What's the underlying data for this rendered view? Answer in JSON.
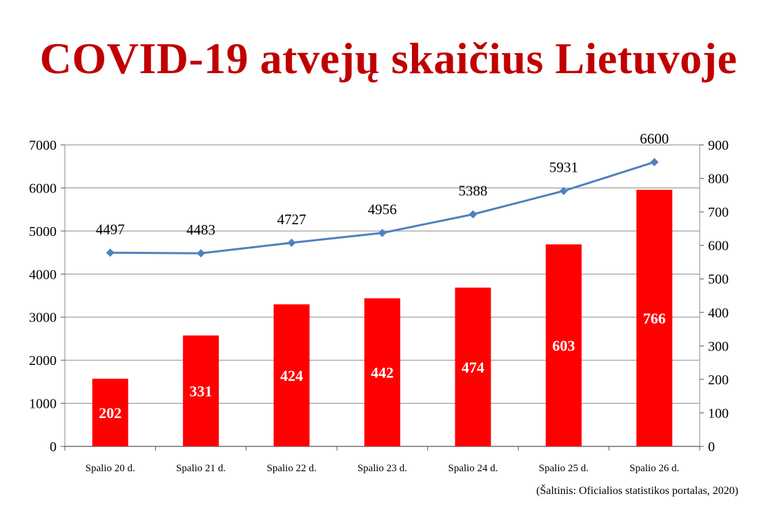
{
  "title": "COVID-19 atvejų skaičius Lietuvoje",
  "source": "(Šaltinis: Oficialios statistikos portalas, 2020)",
  "colors": {
    "title": "#c00000",
    "bars": "#ff0000",
    "line": "#4f81bd",
    "grid": "#888888"
  },
  "chart_data": {
    "type": "bar+line",
    "categories": [
      "Spalio 20 d.",
      "Spalio 21 d.",
      "Spalio 22 d.",
      "Spalio 23 d.",
      "Spalio 24 d.",
      "Spalio 25 d.",
      "Spalio 26 d."
    ],
    "bars": {
      "axis": "right",
      "values": [
        202,
        331,
        424,
        442,
        474,
        603,
        766
      ]
    },
    "line": {
      "axis": "left",
      "values": [
        4497,
        4483,
        4727,
        4956,
        5388,
        5931,
        6600
      ]
    },
    "left_axis": {
      "min": 0,
      "max": 7000,
      "ticks": [
        0,
        1000,
        2000,
        3000,
        4000,
        5000,
        6000,
        7000
      ]
    },
    "right_axis": {
      "min": 0,
      "max": 900,
      "ticks": [
        0,
        100,
        200,
        300,
        400,
        500,
        600,
        700,
        800,
        900
      ]
    },
    "grid": true,
    "legend": "none"
  }
}
